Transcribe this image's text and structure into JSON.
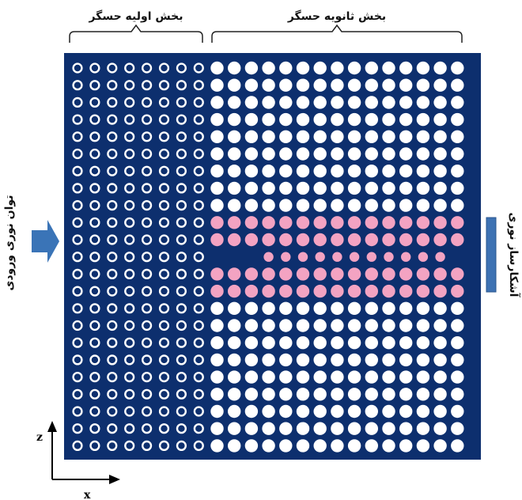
{
  "labels": {
    "primary_section": "بخش اولیه حسگر",
    "secondary_section": "بخش ثانویه حسگر",
    "input_power": "توان نوری ورودی",
    "detector": "آشکارساز نوری",
    "axis_z": "z",
    "axis_x": "x"
  },
  "colors": {
    "slab": "#0d2f6e",
    "hole_white": "#ffffff",
    "hole_pink": "#f3a3c2",
    "arrow_fill": "#3a74b7",
    "detector_fill": "#3e72b3"
  },
  "lattice": {
    "rows": 23,
    "ring_columns": 8,
    "solid_columns": 15,
    "sensing_rows": [
      9,
      10,
      12,
      13
    ],
    "defect_row": 11,
    "defect_inner_columns": 11
  }
}
